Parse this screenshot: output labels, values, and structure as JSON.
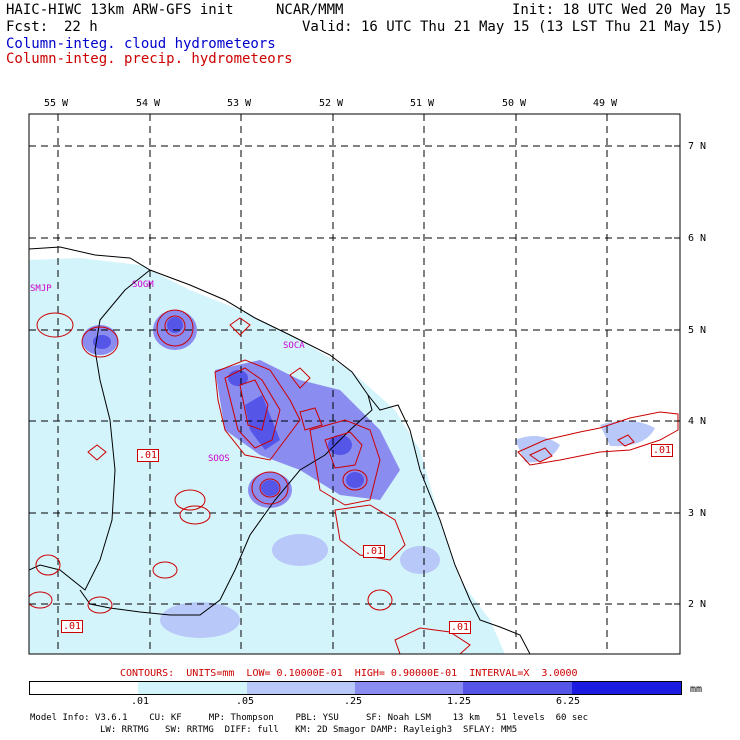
{
  "header": {
    "model": "HAIC-HIWC 13km ARW-GFS init",
    "org": "NCAR/MMM",
    "init": "Init: 18 UTC Wed 20 May 15",
    "fcst_label": "Fcst:",
    "fcst_value": "22 h",
    "valid": "Valid: 16 UTC Thu 21 May 15 (13 LST Thu 21 May 15)",
    "field_cloud": "Column-integ. cloud hydrometeors",
    "field_precip": "Column-integ. precip. hydrometeors"
  },
  "map": {
    "lon_labels": [
      "55 W",
      "54 W",
      "53 W",
      "52 W",
      "51 W",
      "50 W",
      "49 W"
    ],
    "lat_labels": [
      "7 N",
      "6 N",
      "5 N",
      "4 N",
      "3 N",
      "2 N"
    ],
    "stations": [
      "SMJP",
      "SOGM",
      "SOCA",
      "SOOS"
    ],
    "contour_labels": [
      ".01",
      ".01",
      ".01",
      ".01",
      ".01"
    ],
    "colors": {
      "cloud_line": "#0000cc",
      "precip_line": "#cc0000",
      "station": "#cc00cc"
    }
  },
  "contours_line": "CONTOURS:  UNITS=mm  LOW= 0.10000E-01  HIGH= 0.90000E-01  INTERVAL=X  3.0000",
  "colorbar": {
    "ticks": [
      ".01",
      ".05",
      ".25",
      "1.25",
      "6.25"
    ],
    "unit": "mm",
    "colors": [
      "#ffffff",
      "#d4f4fc",
      "#b8c8f8",
      "#8a8cf0",
      "#5555e8",
      "#1c1ce0"
    ]
  },
  "footer": {
    "line1": "Model Info: V3.6.1    CU: KF     MP: Thompson    PBL: YSU     SF: Noah LSM    13 km   51 levels  60 sec",
    "line2": "LW: RRTMG   SW: RRTMG  DIFF: full   KM: 2D Smagor DAMP: Rayleigh3  SFLAY: MM5"
  }
}
